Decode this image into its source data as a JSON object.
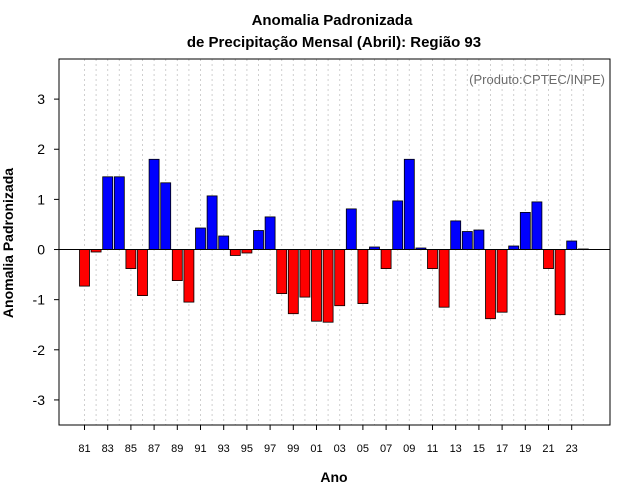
{
  "chart_data": {
    "type": "bar",
    "title": "Anomalia Padronizada",
    "subtitle": "de Precipitação Mensal (Abril): Região 93",
    "xlabel": "Ano",
    "ylabel": "Anomalia Padronizada",
    "credit": "(Produto:CPTEC/INPE)",
    "ylim": [
      -3.5,
      3.8
    ],
    "yticks": [
      -3,
      -2,
      -1,
      0,
      1,
      2,
      3
    ],
    "grid": "vertical-dotted",
    "positive_color": "#0000ff",
    "negative_color": "#ff0000",
    "categories": [
      "81",
      "82",
      "83",
      "84",
      "85",
      "86",
      "87",
      "88",
      "89",
      "90",
      "91",
      "92",
      "93",
      "94",
      "95",
      "96",
      "97",
      "98",
      "99",
      "00",
      "01",
      "02",
      "03",
      "04",
      "05",
      "06",
      "07",
      "08",
      "09",
      "10",
      "11",
      "12",
      "13",
      "14",
      "15",
      "16",
      "17",
      "18",
      "19",
      "20",
      "21",
      "22",
      "23",
      "24"
    ],
    "tick_labels": [
      "81",
      "83",
      "85",
      "87",
      "89",
      "91",
      "93",
      "95",
      "97",
      "99",
      "01",
      "03",
      "05",
      "07",
      "09",
      "11",
      "13",
      "15",
      "17",
      "19",
      "21",
      "23"
    ],
    "values": [
      -0.73,
      -0.05,
      1.45,
      1.45,
      -0.38,
      -0.92,
      1.8,
      1.33,
      -0.62,
      -1.05,
      0.43,
      1.07,
      0.27,
      -0.12,
      -0.07,
      0.38,
      0.65,
      -0.88,
      -1.28,
      -0.95,
      -1.43,
      -1.45,
      -1.12,
      0.81,
      -1.08,
      0.05,
      -0.38,
      0.97,
      1.8,
      0.03,
      -0.38,
      -1.15,
      0.57,
      0.36,
      0.39,
      -1.38,
      -1.25,
      0.07,
      0.74,
      0.95,
      -0.38,
      -1.3,
      0.17,
      0.01
    ]
  }
}
